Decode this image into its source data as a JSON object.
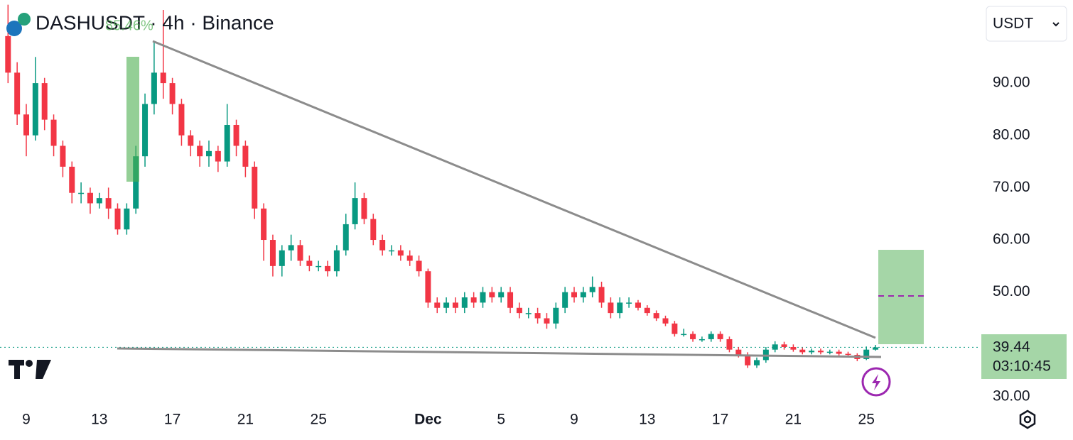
{
  "chart_data": {
    "type": "candlestick",
    "title": "DASHUSDT · 4h · Binance",
    "annotation": "85.46%",
    "currency": "USDT",
    "last_price": 39.44,
    "countdown": "03:10:45",
    "up_color": "#089981",
    "down_color": "#f23645",
    "categories": [
      null,
      null,
      "9",
      null,
      null,
      null,
      null,
      null,
      null,
      null,
      "13",
      null,
      null,
      null,
      null,
      null,
      null,
      null,
      "17",
      null,
      null,
      null,
      null,
      null,
      null,
      null,
      "21",
      null,
      null,
      null,
      null,
      null,
      null,
      null,
      "25",
      null,
      null,
      null,
      null,
      null,
      null,
      null,
      null,
      null,
      null,
      null,
      "Dec",
      null,
      null,
      null,
      null,
      null,
      null,
      null,
      "5",
      null,
      null,
      null,
      null,
      null,
      null,
      null,
      "9",
      null,
      null,
      null,
      null,
      null,
      null,
      null,
      "13",
      null,
      null,
      null,
      null,
      null,
      null,
      null,
      "17",
      null,
      null,
      null,
      null,
      null,
      null,
      null,
      "21",
      null,
      null,
      null,
      null,
      null,
      null,
      null,
      "25",
      null
    ],
    "open": [
      99,
      92,
      84,
      80,
      90,
      83,
      78,
      74,
      69,
      69,
      67,
      68,
      66,
      62,
      66,
      76,
      86,
      92,
      90,
      86,
      80,
      78,
      76,
      77,
      75,
      82,
      78,
      74,
      66,
      60,
      55,
      58,
      59,
      56,
      55,
      55,
      54,
      58,
      63,
      68,
      64,
      60,
      58,
      58,
      57,
      56,
      54,
      48,
      47,
      48,
      47,
      49,
      48,
      50,
      49,
      50,
      47,
      46,
      46,
      45,
      44,
      47,
      50,
      49,
      50,
      51,
      48,
      46,
      48,
      48,
      47,
      46,
      45,
      44,
      42,
      42,
      41,
      41,
      42,
      41,
      39,
      38,
      36,
      37,
      39,
      40,
      39.5,
      39,
      38.5,
      38.8,
      38.5,
      38.6,
      38.2,
      38,
      37.2,
      39
    ],
    "high": [
      105,
      94,
      86,
      95,
      91,
      84,
      79,
      75,
      71,
      70,
      69,
      70,
      67,
      67,
      78,
      88,
      98,
      104,
      91,
      87,
      81,
      79,
      79,
      78,
      86,
      83,
      79,
      75,
      67,
      61,
      59,
      61,
      60,
      57,
      56,
      56,
      59,
      65,
      71,
      69,
      65,
      61,
      59,
      59,
      58,
      57,
      54.5,
      49,
      49,
      49,
      50,
      50,
      51,
      51,
      51,
      51,
      48,
      47,
      47,
      46,
      48,
      51,
      51,
      51,
      53,
      52,
      49,
      49,
      49,
      48.5,
      47.5,
      46.5,
      45.5,
      44.5,
      43,
      42.5,
      41.5,
      42.5,
      42.5,
      41.5,
      39.5,
      38.5,
      37.5,
      39.5,
      40.6,
      40.5,
      40,
      39.4,
      39.2,
      39.2,
      39,
      39,
      38.6,
      38.3,
      39.6,
      39.9
    ],
    "low": [
      90,
      82,
      76,
      79,
      81,
      76,
      72,
      67,
      67,
      65,
      66,
      64,
      61,
      61,
      65,
      74,
      84,
      87,
      84,
      78,
      76,
      74,
      74,
      73,
      74,
      76,
      72,
      64,
      56,
      53,
      53,
      56,
      55,
      54,
      54,
      53,
      53,
      57,
      62,
      63,
      59,
      57,
      57,
      56,
      55,
      53,
      47,
      46,
      46,
      46,
      46,
      47,
      47,
      48,
      48,
      46,
      45,
      45,
      44,
      43,
      43,
      46,
      48,
      48,
      49,
      47,
      45,
      45,
      47,
      46.5,
      45.5,
      44.5,
      43.5,
      41.5,
      41.5,
      40.5,
      40.5,
      40.5,
      40.5,
      38.5,
      37.5,
      35.5,
      35.5,
      36.5,
      38.5,
      39,
      38.6,
      38.1,
      38.1,
      38.1,
      38.1,
      37.8,
      37.6,
      36.8,
      37,
      38.8
    ],
    "close": [
      92,
      84,
      80,
      90,
      83,
      78,
      74,
      69,
      69,
      67,
      68,
      66,
      62,
      66,
      76,
      86,
      92,
      90,
      86,
      80,
      78,
      76,
      77,
      75,
      82,
      78,
      74,
      66,
      60,
      55,
      58,
      59,
      56,
      55,
      55,
      54,
      58,
      63,
      68,
      64,
      60,
      58,
      58,
      57,
      56,
      54,
      48,
      47,
      48,
      47,
      49,
      48,
      50,
      49,
      50,
      47,
      46,
      46,
      45,
      44,
      47,
      50,
      49,
      50,
      51,
      48,
      46,
      48,
      48,
      47,
      46,
      45,
      44,
      42,
      42,
      41,
      41,
      42,
      41,
      39,
      38,
      36,
      37,
      39,
      40,
      39.5,
      39,
      38.5,
      38.8,
      38.5,
      38.6,
      38.2,
      38,
      37.2,
      39,
      39.44
    ],
    "ylim": [
      28.5,
      105.9
    ],
    "yticks": [
      {
        "value": 30,
        "label": "30.00"
      },
      {
        "value": 50,
        "label": "50.00"
      },
      {
        "value": 60,
        "label": "60.00"
      },
      {
        "value": 70,
        "label": "70.00"
      },
      {
        "value": 80,
        "label": "80.00"
      },
      {
        "value": 90,
        "label": "90.00"
      }
    ]
  }
}
